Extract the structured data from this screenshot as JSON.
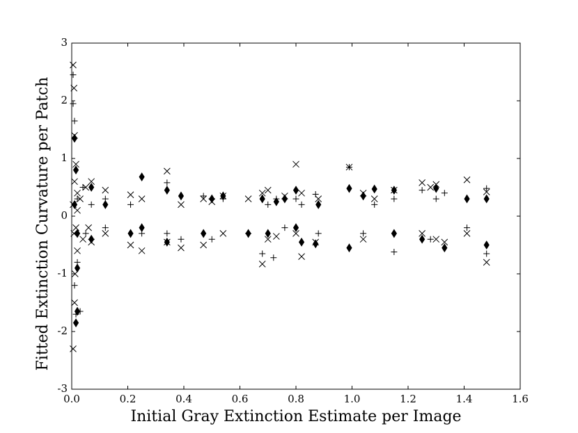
{
  "chart_data": {
    "type": "scatter",
    "xlabel": "Initial Gray Extinction Estimate per Image",
    "ylabel": "Fitted Extinction Curvature per Patch",
    "xlim": [
      0,
      1.6
    ],
    "ylim": [
      -3,
      3
    ],
    "xticks": [
      {
        "value": 0,
        "label": "0.0"
      },
      {
        "value": 0.2,
        "label": "0.2"
      },
      {
        "value": 0.4,
        "label": "0.4"
      },
      {
        "value": 0.6,
        "label": "0.6"
      },
      {
        "value": 0.8,
        "label": "0.8"
      },
      {
        "value": 1.0,
        "label": "1.0"
      },
      {
        "value": 1.2,
        "label": "1.2"
      },
      {
        "value": 1.4,
        "label": "1.4"
      },
      {
        "value": 1.6,
        "label": "1.6"
      }
    ],
    "yticks": [
      -3,
      -2,
      -1,
      0,
      1,
      2,
      3
    ],
    "grid": false,
    "series": [
      {
        "marker": "x",
        "color": "#000000",
        "x": [
          0.005,
          0.005,
          0.008,
          0.01,
          0.01,
          0.012,
          0.015,
          0.02,
          0.02,
          0.005,
          0.008,
          0.01,
          0.015,
          0.02,
          0.03,
          0.04,
          0.05,
          0.06,
          0.07,
          0.07,
          0.12,
          0.12,
          0.21,
          0.21,
          0.25,
          0.25,
          0.34,
          0.34,
          0.39,
          0.39,
          0.47,
          0.47,
          0.5,
          0.54,
          0.54,
          0.63,
          0.68,
          0.68,
          0.7,
          0.7,
          0.73,
          0.76,
          0.8,
          0.8,
          0.82,
          0.82,
          0.87,
          0.88,
          0.99,
          1.04,
          1.04,
          1.08,
          1.15,
          1.25,
          1.25,
          1.28,
          1.3,
          1.3,
          1.33,
          1.41,
          1.41,
          1.48,
          1.48
        ],
        "y": [
          2.62,
          -2.3,
          2.22,
          1.4,
          -1.5,
          -1.0,
          0.9,
          -0.6,
          0.4,
          0.2,
          -0.3,
          0.6,
          -0.2,
          0.1,
          0.3,
          -0.4,
          0.5,
          -0.2,
          0.6,
          -0.45,
          0.45,
          -0.3,
          0.37,
          -0.5,
          0.3,
          -0.6,
          0.78,
          -0.45,
          0.2,
          -0.55,
          0.3,
          -0.5,
          0.25,
          0.35,
          -0.3,
          0.3,
          -0.83,
          0.4,
          0.45,
          -0.4,
          -0.35,
          0.35,
          0.9,
          -0.3,
          0.4,
          -0.7,
          -0.45,
          0.3,
          0.85,
          0.4,
          -0.4,
          0.3,
          0.45,
          0.58,
          -0.3,
          0.5,
          0.55,
          -0.4,
          -0.45,
          0.63,
          -0.3,
          0.42,
          -0.8
        ]
      },
      {
        "marker": "+",
        "color": "#000000",
        "x": [
          0.005,
          0.005,
          0.01,
          0.01,
          0.015,
          0.02,
          0.03,
          0.02,
          0.04,
          0.05,
          0.07,
          0.12,
          0.12,
          0.21,
          0.25,
          0.34,
          0.34,
          0.39,
          0.47,
          0.5,
          0.5,
          0.54,
          0.63,
          0.68,
          0.7,
          0.72,
          0.73,
          0.76,
          0.8,
          0.82,
          0.87,
          0.88,
          0.99,
          1.04,
          1.08,
          1.15,
          1.15,
          1.25,
          1.28,
          1.3,
          1.33,
          1.41,
          1.48,
          1.48
        ],
        "y": [
          2.45,
          1.95,
          1.65,
          -1.2,
          -1.7,
          0.3,
          -1.65,
          -0.8,
          0.5,
          -0.3,
          0.2,
          0.3,
          -0.2,
          0.2,
          -0.3,
          0.58,
          -0.3,
          -0.4,
          0.35,
          0.3,
          -0.4,
          0.3,
          -0.3,
          -0.65,
          0.2,
          -0.72,
          0.3,
          -0.2,
          0.3,
          0.2,
          0.38,
          -0.3,
          0.85,
          -0.3,
          0.2,
          -0.62,
          0.3,
          0.45,
          -0.4,
          0.3,
          0.4,
          -0.2,
          0.48,
          -0.65
        ]
      },
      {
        "marker": "diamond",
        "color": "#000000",
        "x": [
          0.01,
          0.015,
          0.02,
          0.015,
          0.02,
          0.01,
          0.02,
          0.07,
          0.07,
          0.12,
          0.21,
          0.25,
          0.25,
          0.34,
          0.34,
          0.39,
          0.47,
          0.5,
          0.54,
          0.63,
          0.68,
          0.7,
          0.73,
          0.76,
          0.8,
          0.8,
          0.82,
          0.87,
          0.88,
          0.99,
          0.99,
          1.04,
          1.08,
          1.15,
          1.15,
          1.25,
          1.3,
          1.33,
          1.41,
          1.48,
          1.48
        ],
        "y": [
          1.35,
          -1.85,
          -1.65,
          0.8,
          -0.9,
          0.2,
          -0.3,
          0.5,
          -0.4,
          0.2,
          -0.3,
          0.68,
          -0.2,
          0.45,
          -0.45,
          0.35,
          -0.3,
          0.3,
          0.35,
          -0.3,
          0.3,
          -0.3,
          0.25,
          0.3,
          0.45,
          -0.2,
          -0.45,
          -0.48,
          0.2,
          0.48,
          -0.55,
          0.35,
          0.47,
          0.45,
          -0.3,
          -0.4,
          0.48,
          -0.55,
          0.3,
          0.3,
          -0.5
        ]
      }
    ]
  }
}
